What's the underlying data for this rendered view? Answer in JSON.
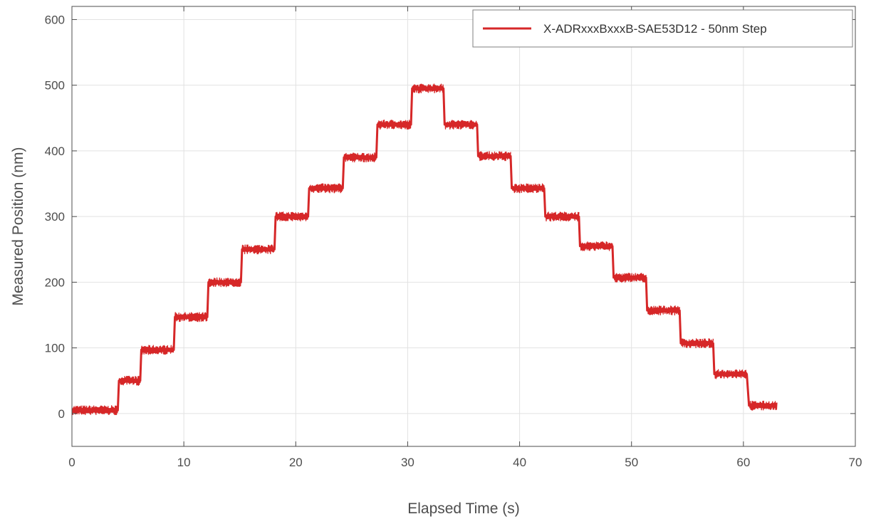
{
  "chart_data": {
    "type": "line",
    "title": "",
    "xlabel": "Elapsed Time (s)",
    "ylabel": "Measured Position (nm)",
    "xlim": [
      0,
      70
    ],
    "ylim": [
      -50,
      620
    ],
    "xticks": [
      0,
      10,
      20,
      30,
      40,
      50,
      60,
      70
    ],
    "xtick_labels": [
      "0",
      "10",
      "20",
      "30",
      "40",
      "50",
      "60",
      "70"
    ],
    "yticks": [
      0,
      100,
      200,
      300,
      400,
      500,
      600
    ],
    "ytick_labels": [
      "0",
      "100",
      "200",
      "300",
      "400",
      "500",
      "600"
    ],
    "grid": true,
    "legend_position": "top-right",
    "series": [
      {
        "name": "X-ADRxxxBxxxB-SAE53D12 - 50nm Step",
        "color": "#d62728",
        "noise_band_nm": 14,
        "x": [
          0,
          4.1,
          4.2,
          6.1,
          6.2,
          9.1,
          9.2,
          12.1,
          12.2,
          15.1,
          15.2,
          18.1,
          18.2,
          21.1,
          21.2,
          24.2,
          24.3,
          27.2,
          27.3,
          30.3,
          30.4,
          33.2,
          33.3,
          36.2,
          36.3,
          39.2,
          39.3,
          42.2,
          42.3,
          45.3,
          45.4,
          48.3,
          48.4,
          51.3,
          51.4,
          54.3,
          54.4,
          57.3,
          57.4,
          60.3,
          60.5,
          63
        ],
        "y": [
          5,
          5,
          50,
          50,
          97,
          97,
          147,
          147,
          200,
          200,
          250,
          250,
          300,
          300,
          343,
          343,
          390,
          390,
          440,
          440,
          495,
          495,
          440,
          440,
          392,
          392,
          343,
          343,
          300,
          300,
          255,
          255,
          207,
          207,
          157,
          157,
          107,
          107,
          60,
          60,
          12,
          12
        ]
      }
    ]
  }
}
